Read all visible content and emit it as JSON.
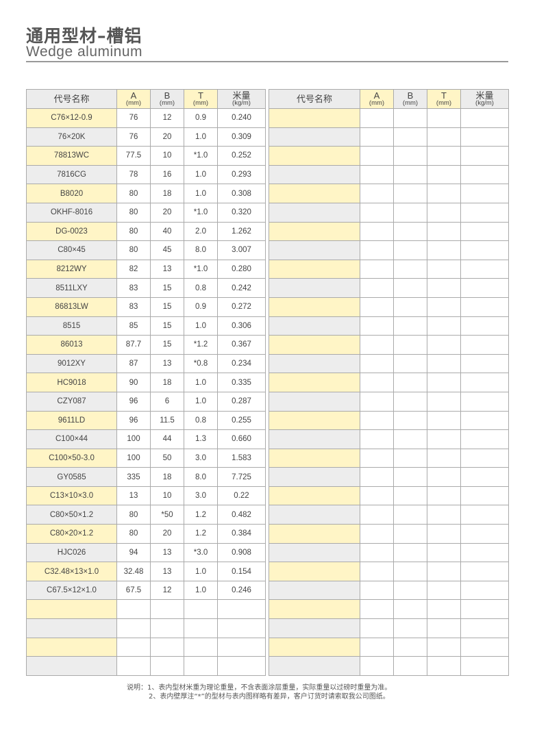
{
  "header": {
    "title_cn": "通用型材–槽铝",
    "title_en": "Wedge aluminum"
  },
  "table": {
    "columns": [
      {
        "label": "代号名称",
        "unit": ""
      },
      {
        "label": "A",
        "unit": "(mm)"
      },
      {
        "label": "B",
        "unit": "(mm)"
      },
      {
        "label": "T",
        "unit": "(mm)"
      },
      {
        "label": "米量",
        "unit": "(kg/m)"
      }
    ],
    "left_rows": [
      [
        "C76×12-0.9",
        "76",
        "12",
        "0.9",
        "0.240"
      ],
      [
        "76×20K",
        "76",
        "20",
        "1.0",
        "0.309"
      ],
      [
        "78813WC",
        "77.5",
        "10",
        "*1.0",
        "0.252"
      ],
      [
        "7816CG",
        "78",
        "16",
        "1.0",
        "0.293"
      ],
      [
        "B8020",
        "80",
        "18",
        "1.0",
        "0.308"
      ],
      [
        "OKHF-8016",
        "80",
        "20",
        "*1.0",
        "0.320"
      ],
      [
        "DG-0023",
        "80",
        "40",
        "2.0",
        "1.262"
      ],
      [
        "C80×45",
        "80",
        "45",
        "8.0",
        "3.007"
      ],
      [
        "8212WY",
        "82",
        "13",
        "*1.0",
        "0.280"
      ],
      [
        "8511LXY",
        "83",
        "15",
        "0.8",
        "0.242"
      ],
      [
        "86813LW",
        "83",
        "15",
        "0.9",
        "0.272"
      ],
      [
        "8515",
        "85",
        "15",
        "1.0",
        "0.306"
      ],
      [
        "86013",
        "87.7",
        "15",
        "*1.2",
        "0.367"
      ],
      [
        "9012XY",
        "87",
        "13",
        "*0.8",
        "0.234"
      ],
      [
        "HC9018",
        "90",
        "18",
        "1.0",
        "0.335"
      ],
      [
        "CZY087",
        "96",
        "6",
        "1.0",
        "0.287"
      ],
      [
        "9611LD",
        "96",
        "11.5",
        "0.8",
        "0.255"
      ],
      [
        "C100×44",
        "100",
        "44",
        "1.3",
        "0.660"
      ],
      [
        "C100×50-3.0",
        "100",
        "50",
        "3.0",
        "1.583"
      ],
      [
        "GY0585",
        "335",
        "18",
        "8.0",
        "7.725"
      ],
      [
        "C13×10×3.0",
        "13",
        "10",
        "3.0",
        "0.22"
      ],
      [
        "C80×50×1.2",
        "80",
        "*50",
        "1.2",
        "0.482"
      ],
      [
        "C80×20×1.2",
        "80",
        "20",
        "1.2",
        "0.384"
      ],
      [
        "HJC026",
        "94",
        "13",
        "*3.0",
        "0.908"
      ],
      [
        "C32.48×13×1.0",
        "32.48",
        "13",
        "1.0",
        "0.154"
      ],
      [
        "C67.5×12×1.0",
        "67.5",
        "12",
        "1.0",
        "0.246"
      ]
    ],
    "right_rows": []
  },
  "notes": {
    "line1": "说明：1、表内型材米重为理论重量，不含表面涂层重量，实际重量以过磅时重量为准。",
    "line2": "2、表内壁厚注“*”的型材与表内图样略有差异，客户订货时请索取我公司图纸。"
  },
  "colors": {
    "highlight": "#fff5c6",
    "shade": "#ededed",
    "border": "#aaaaaa"
  }
}
